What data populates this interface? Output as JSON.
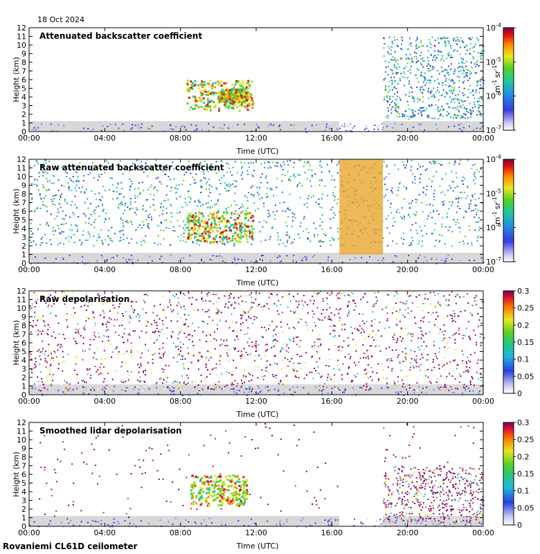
{
  "date": "18 Oct 2024",
  "footer": "Rovaniemi CL61D ceilometer",
  "colors": {
    "ground": "#d8d8d8",
    "missing": "#ffffff",
    "frame": "#000000"
  },
  "chart_data": [
    {
      "type": "heatmap",
      "title": "Attenuated backscatter coefficient",
      "xlabel": "Time (UTC)",
      "ylabel": "Height (km)",
      "x_ticks": [
        "00:00",
        "04:00",
        "08:00",
        "12:00",
        "16:00",
        "20:00",
        "00:00"
      ],
      "y_ticks": [
        "0",
        "1",
        "2",
        "3",
        "4",
        "5",
        "6",
        "7",
        "8",
        "9",
        "10",
        "11",
        "12"
      ],
      "xlim_hours": [
        0,
        24
      ],
      "ylim_km": [
        0,
        12
      ],
      "colorbar": {
        "scale": "log",
        "ticks": [
          {
            "base": "10",
            "exp": "-7"
          },
          {
            "base": "10",
            "exp": "-6"
          },
          {
            "base": "10",
            "exp": "-5"
          },
          {
            "base": "10",
            "exp": "-4"
          }
        ],
        "unit": {
          "a": "m",
          "ae": "-1",
          "b": "sr",
          "be": "-1"
        }
      },
      "features": [
        {
          "kind": "cloud",
          "t_start": 8.3,
          "t_end": 11.8,
          "h_bottom": 2.5,
          "h_top": 6.0
        },
        {
          "kind": "no_data",
          "t_start": 16.4,
          "t_end": 18.7
        },
        {
          "kind": "noise",
          "t_start": 18.7,
          "t_end": 24.0,
          "h_bottom": 1.5,
          "h_top": 11.0
        },
        {
          "kind": "cloud",
          "t_start": 10.0,
          "t_end": 11.5,
          "h_bottom": 3.5,
          "h_top": 5.0
        }
      ]
    },
    {
      "type": "heatmap",
      "title": "Raw attenuated backscatter coefficient",
      "xlabel": "Time (UTC)",
      "ylabel": "Height (km)",
      "x_ticks": [
        "00:00",
        "04:00",
        "08:00",
        "12:00",
        "16:00",
        "20:00",
        "00:00"
      ],
      "y_ticks": [
        "0",
        "1",
        "2",
        "3",
        "4",
        "5",
        "6",
        "7",
        "8",
        "9",
        "10",
        "11",
        "12"
      ],
      "xlim_hours": [
        0,
        24
      ],
      "ylim_km": [
        0,
        12
      ],
      "colorbar": {
        "scale": "log",
        "ticks": [
          {
            "base": "10",
            "exp": "-7"
          },
          {
            "base": "10",
            "exp": "-6"
          },
          {
            "base": "10",
            "exp": "-5"
          },
          {
            "base": "10",
            "exp": "-4"
          }
        ],
        "unit": {
          "a": "m",
          "ae": "-1",
          "b": "sr",
          "be": "-1"
        }
      },
      "features": [
        {
          "kind": "noise",
          "t_start": 0.0,
          "t_end": 24.0,
          "h_bottom": 2.0,
          "h_top": 12.0
        },
        {
          "kind": "high_noise",
          "t_start": 16.4,
          "t_end": 18.7
        },
        {
          "kind": "cloud",
          "t_start": 8.3,
          "t_end": 11.8,
          "h_bottom": 2.5,
          "h_top": 6.0
        }
      ]
    },
    {
      "type": "heatmap",
      "title": "Raw depolarisation",
      "xlabel": "Time (UTC)",
      "ylabel": "Height (km)",
      "x_ticks": [
        "00:00",
        "04:00",
        "08:00",
        "12:00",
        "16:00",
        "20:00",
        "00:00"
      ],
      "y_ticks": [
        "0",
        "1",
        "2",
        "3",
        "4",
        "5",
        "6",
        "7",
        "8",
        "9",
        "10",
        "11",
        "12"
      ],
      "xlim_hours": [
        0,
        24
      ],
      "ylim_km": [
        0,
        12
      ],
      "colorbar": {
        "scale": "linear",
        "ticks": [
          "0",
          "0.05",
          "0.1",
          "0.15",
          "0.2",
          "0.25",
          "0.3"
        ]
      },
      "features": [
        {
          "kind": "saturated_noise",
          "t_start": 0.0,
          "t_end": 24.0,
          "h_bottom": 0.5,
          "h_top": 12.0
        }
      ]
    },
    {
      "type": "heatmap",
      "title": "Smoothed lidar depolarisation",
      "xlabel": "Time (UTC)",
      "ylabel": "Height (km)",
      "x_ticks": [
        "00:00",
        "04:00",
        "08:00",
        "12:00",
        "16:00",
        "20:00",
        "00:00"
      ],
      "y_ticks": [
        "0",
        "1",
        "2",
        "3",
        "4",
        "5",
        "6",
        "7",
        "8",
        "9",
        "10",
        "11",
        "12"
      ],
      "xlim_hours": [
        0,
        24
      ],
      "ylim_km": [
        0,
        12
      ],
      "colorbar": {
        "scale": "linear",
        "ticks": [
          "0",
          "0.05",
          "0.1",
          "0.15",
          "0.2",
          "0.25",
          "0.3"
        ]
      },
      "features": [
        {
          "kind": "sparse",
          "t_start": 0.0,
          "t_end": 24.0,
          "h_bottom": 1.0,
          "h_top": 12.0
        },
        {
          "kind": "cloud",
          "t_start": 8.5,
          "t_end": 11.5,
          "h_bottom": 2.5,
          "h_top": 6.0
        },
        {
          "kind": "no_data",
          "t_start": 16.4,
          "t_end": 18.7
        },
        {
          "kind": "noise",
          "t_start": 18.7,
          "t_end": 24.0,
          "h_bottom": 0.5,
          "h_top": 7.0
        }
      ]
    }
  ]
}
